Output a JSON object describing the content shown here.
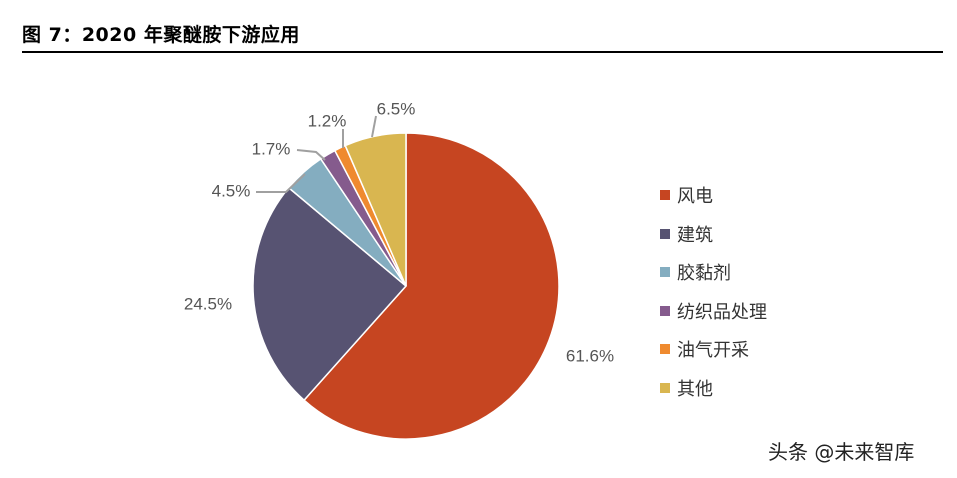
{
  "figure_title": "图 7：2020 年聚醚胺下游应用",
  "watermark": "头条 @未来智库",
  "chart_data": {
    "type": "pie",
    "categories": [
      "风电",
      "建筑",
      "胶黏剂",
      "纺织品处理",
      "油气开采",
      "其他"
    ],
    "values": [
      61.6,
      24.5,
      4.5,
      1.7,
      1.2,
      6.5
    ],
    "value_labels": [
      "61.6%",
      "24.5%",
      "4.5%",
      "1.7%",
      "1.2%",
      "6.5%"
    ],
    "colors": [
      "#C64521",
      "#575372",
      "#84ADC0",
      "#855B8D",
      "#EF8A2F",
      "#D9B650"
    ],
    "start": "12 o'clock",
    "direction": "clockwise",
    "legend_position": "right"
  }
}
